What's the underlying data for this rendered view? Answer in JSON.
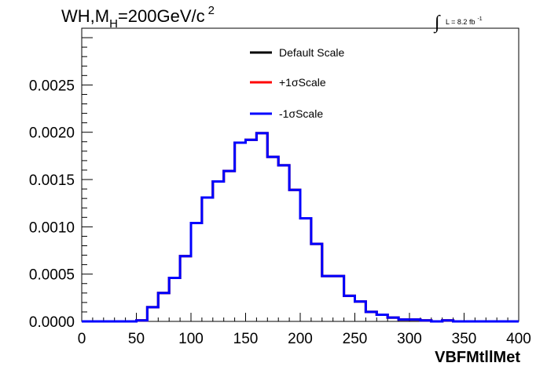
{
  "title": {
    "main": "WH,M",
    "sub": "H",
    "rest": "=200GeV/c",
    "sup": "2"
  },
  "lumi": {
    "integral": "∫",
    "text": "L = 8.2 fb",
    "sup": "-1"
  },
  "colors": {
    "default": "#000000",
    "plus": "#ff0000",
    "minus": "#0000ff"
  },
  "chart_data": {
    "type": "line",
    "xlabel": "VBFMtllMet",
    "ylabel": "",
    "xlim": [
      0,
      400
    ],
    "ylim": [
      0,
      0.0031
    ],
    "x_ticks": [
      "0",
      "50",
      "100",
      "150",
      "200",
      "250",
      "300",
      "350",
      "400"
    ],
    "y_ticks": [
      "0.0000",
      "0.0005",
      "0.0010",
      "0.0015",
      "0.0020",
      "0.0025"
    ],
    "bin_width": 10,
    "bin_edges_start": 0,
    "legend_position": "top-center",
    "series": [
      {
        "name": "Default Scale",
        "color": "#000000",
        "values": [
          0,
          0,
          0,
          0,
          0,
          1e-05,
          0.00015,
          0.0003,
          0.00046,
          0.00069,
          0.00104,
          0.00131,
          0.00148,
          0.00159,
          0.00189,
          0.00192,
          0.00199,
          0.00174,
          0.00165,
          0.00139,
          0.00109,
          0.00082,
          0.00048,
          0.00048,
          0.00027,
          0.00021,
          0.0001,
          7e-05,
          4e-05,
          2e-05,
          2e-05,
          1e-05,
          0,
          1e-05,
          0,
          0,
          0,
          0,
          0,
          0
        ]
      },
      {
        "name": "+1σScale",
        "color": "#ff0000",
        "values": [
          0,
          0,
          0,
          0,
          0,
          1e-05,
          0.00015,
          0.0003,
          0.00046,
          0.00069,
          0.00104,
          0.00131,
          0.00148,
          0.00159,
          0.00189,
          0.00192,
          0.00199,
          0.00174,
          0.00165,
          0.00139,
          0.00109,
          0.00082,
          0.00048,
          0.00048,
          0.00027,
          0.00021,
          0.0001,
          7e-05,
          4e-05,
          2e-05,
          2e-05,
          1e-05,
          0,
          1e-05,
          0,
          0,
          0,
          0,
          0,
          0
        ]
      },
      {
        "name": "-1σScale",
        "color": "#0000ff",
        "values": [
          0,
          0,
          0,
          0,
          0,
          1e-05,
          0.00015,
          0.0003,
          0.00046,
          0.00069,
          0.00104,
          0.00131,
          0.00148,
          0.00159,
          0.00189,
          0.00192,
          0.00199,
          0.00174,
          0.00165,
          0.00139,
          0.00109,
          0.00082,
          0.00048,
          0.00048,
          0.00027,
          0.00021,
          0.0001,
          7e-05,
          4e-05,
          2e-05,
          2e-05,
          1e-05,
          0,
          1e-05,
          0,
          0,
          0,
          0,
          0,
          0
        ]
      }
    ]
  }
}
